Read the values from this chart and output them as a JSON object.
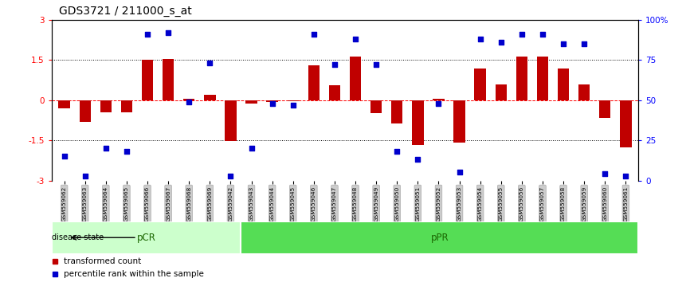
{
  "title": "GDS3721 / 211000_s_at",
  "samples": [
    "GSM559062",
    "GSM559063",
    "GSM559064",
    "GSM559065",
    "GSM559066",
    "GSM559067",
    "GSM559068",
    "GSM559069",
    "GSM559042",
    "GSM559043",
    "GSM559044",
    "GSM559045",
    "GSM559046",
    "GSM559047",
    "GSM559048",
    "GSM559049",
    "GSM559050",
    "GSM559051",
    "GSM559052",
    "GSM559053",
    "GSM559054",
    "GSM559055",
    "GSM559056",
    "GSM559057",
    "GSM559058",
    "GSM559059",
    "GSM559060",
    "GSM559061"
  ],
  "transformed_count": [
    -0.3,
    -0.8,
    -0.45,
    -0.45,
    1.52,
    1.55,
    0.04,
    0.2,
    -1.52,
    -0.12,
    -0.08,
    -0.05,
    1.3,
    0.55,
    1.62,
    -0.5,
    -0.88,
    -1.68,
    0.04,
    -1.6,
    1.18,
    0.58,
    1.62,
    1.62,
    1.18,
    0.58,
    -0.65,
    -1.75
  ],
  "percentile_rank": [
    15,
    3,
    20,
    18,
    91,
    92,
    49,
    73,
    3,
    20,
    48,
    47,
    91,
    72,
    88,
    72,
    18,
    13,
    48,
    5,
    88,
    86,
    91,
    91,
    85,
    85,
    4,
    3
  ],
  "pCR_count": 9,
  "pPR_count": 19,
  "group_labels": [
    "pCR",
    "pPR"
  ],
  "bar_color": "#c00000",
  "dot_color": "#0000cc",
  "ylim": [
    -3,
    3
  ],
  "yticks_left": [
    -3,
    -1.5,
    0,
    1.5,
    3
  ],
  "ytick_labels_left": [
    "-3",
    "-1.5",
    "0",
    "1.5",
    "3"
  ],
  "right_ytick_percents": [
    0,
    25,
    50,
    75,
    100
  ],
  "right_ytick_labels": [
    "0",
    "25",
    "50",
    "75",
    "100%"
  ],
  "pCR_color": "#ccffcc",
  "pPR_color": "#55dd55",
  "group_label_color": "#1a6600",
  "bar_width": 0.55,
  "dot_size": 14
}
